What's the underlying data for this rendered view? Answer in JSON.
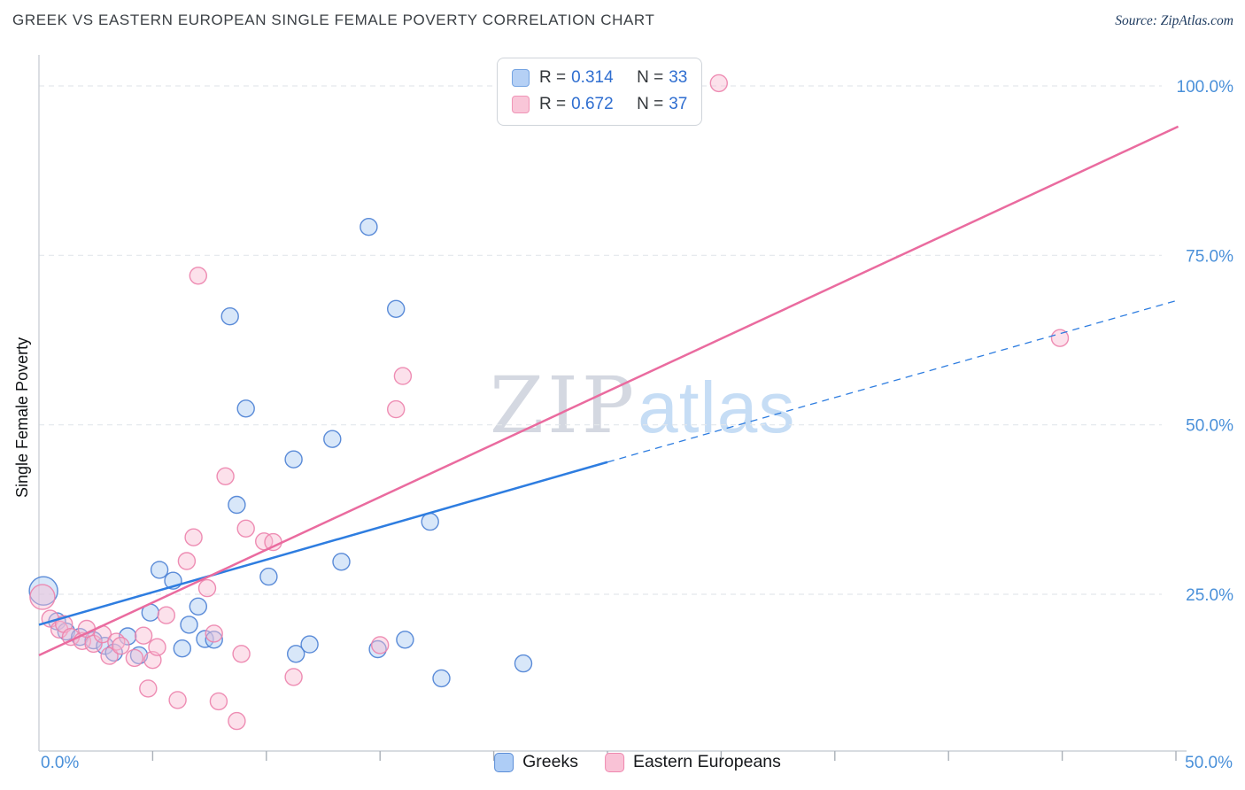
{
  "header": {
    "title": "GREEK VS EASTERN EUROPEAN SINGLE FEMALE POVERTY CORRELATION CHART",
    "source": "Source: ZipAtlas.com"
  },
  "watermark": {
    "zip": "ZIP",
    "atlas": "atlas"
  },
  "legend_box": {
    "rows": [
      {
        "series": "Greeks",
        "r_label": "R =",
        "r_value": "0.314",
        "n_label": "N =",
        "n_value": "33"
      },
      {
        "series": "Eastern Europeans",
        "r_label": "R =",
        "r_value": "0.672",
        "n_label": "N =",
        "n_value": "37"
      }
    ]
  },
  "bottom_legend": [
    {
      "label": "Greeks"
    },
    {
      "label": "Eastern Europeans"
    }
  ],
  "chart_data": {
    "type": "scatter",
    "title": "GREEK VS EASTERN EUROPEAN SINGLE FEMALE POVERTY CORRELATION CHART",
    "xlabel": "",
    "ylabel": "Single Female Poverty",
    "xlim": [
      0,
      50
    ],
    "ylim": [
      0,
      100
    ],
    "units": "percent",
    "grid": "horizontal dashed gridlines at 25, 50, 75, 100",
    "legend_position": "top-center (R/N box) and bottom-center (series names)",
    "axis_label_color": "#4a90d9",
    "x_axis": {
      "min": 0,
      "max": 50,
      "tick_step": 5,
      "left_label": "0.0%",
      "right_label": "50.0%"
    },
    "y_axis": {
      "min": 0,
      "max": 100,
      "side": "right",
      "gridlines": [
        {
          "value": 100,
          "label": "100.0%"
        },
        {
          "value": 75,
          "label": "75.0%"
        },
        {
          "value": 50,
          "label": "50.0%"
        },
        {
          "value": 25,
          "label": "25.0%"
        }
      ]
    },
    "series": [
      {
        "id": "greeks",
        "name": "Greeks",
        "R": 0.314,
        "N": 33,
        "fill": "#a9c9f2",
        "stroke": "#4a7fd4",
        "points": [
          [
            0.2,
            25.5,
            16
          ],
          [
            0.8,
            21.0
          ],
          [
            1.2,
            19.5
          ],
          [
            1.8,
            18.7
          ],
          [
            2.4,
            18.2
          ],
          [
            2.9,
            17.4
          ],
          [
            3.3,
            16.4
          ],
          [
            3.9,
            18.8
          ],
          [
            4.4,
            16.0
          ],
          [
            4.9,
            22.3
          ],
          [
            5.3,
            28.6
          ],
          [
            5.9,
            27.0
          ],
          [
            6.3,
            17.0
          ],
          [
            6.6,
            20.5
          ],
          [
            7.0,
            23.2
          ],
          [
            7.3,
            18.4
          ],
          [
            7.7,
            18.3
          ],
          [
            8.4,
            66.0
          ],
          [
            8.7,
            38.2
          ],
          [
            9.1,
            52.4
          ],
          [
            10.1,
            27.6
          ],
          [
            11.2,
            44.9
          ],
          [
            11.3,
            16.2
          ],
          [
            11.9,
            17.6
          ],
          [
            12.9,
            47.9
          ],
          [
            13.3,
            29.8
          ],
          [
            14.5,
            79.2
          ],
          [
            14.9,
            16.9
          ],
          [
            15.7,
            67.1
          ],
          [
            16.1,
            18.3
          ],
          [
            17.2,
            35.7
          ],
          [
            17.7,
            12.6
          ],
          [
            21.3,
            14.8
          ]
        ]
      },
      {
        "id": "eastern-europeans",
        "name": "Eastern Europeans",
        "R": 0.672,
        "N": 37,
        "fill": "#f8bcd2",
        "stroke": "#ec82ac",
        "points": [
          [
            0.15,
            24.6,
            14
          ],
          [
            0.5,
            21.4
          ],
          [
            0.9,
            19.8
          ],
          [
            1.1,
            20.6
          ],
          [
            1.4,
            18.7
          ],
          [
            1.9,
            18.1
          ],
          [
            2.1,
            19.9
          ],
          [
            2.4,
            17.7
          ],
          [
            2.8,
            19.1
          ],
          [
            3.1,
            15.9
          ],
          [
            3.4,
            18.0
          ],
          [
            3.6,
            17.4
          ],
          [
            4.2,
            15.6
          ],
          [
            4.6,
            18.9
          ],
          [
            4.8,
            11.1
          ],
          [
            5.0,
            15.3
          ],
          [
            5.2,
            17.2
          ],
          [
            5.6,
            21.9
          ],
          [
            6.1,
            9.4
          ],
          [
            6.5,
            29.9
          ],
          [
            6.8,
            33.4
          ],
          [
            7.0,
            72.0
          ],
          [
            7.4,
            25.9
          ],
          [
            7.7,
            19.2
          ],
          [
            7.9,
            9.2
          ],
          [
            8.2,
            42.4
          ],
          [
            8.7,
            6.3
          ],
          [
            8.9,
            16.2
          ],
          [
            9.1,
            34.7
          ],
          [
            9.9,
            32.8
          ],
          [
            10.3,
            32.7
          ],
          [
            11.2,
            12.8
          ],
          [
            15.0,
            17.5
          ],
          [
            15.7,
            52.3
          ],
          [
            16.0,
            57.2
          ],
          [
            29.9,
            100.4
          ],
          [
            44.9,
            62.8
          ]
        ]
      }
    ],
    "trend_lines": [
      {
        "id": "greeks",
        "series": "Greeks",
        "color": "#2e7de0",
        "solid": [
          [
            0,
            20.5
          ],
          [
            25,
            44.5
          ]
        ],
        "dashed": [
          [
            25,
            44.5
          ],
          [
            50.1,
            68.4
          ]
        ]
      },
      {
        "id": "eastern-europeans",
        "series": "Eastern Europeans",
        "color": "#ea6b9f",
        "solid": [
          [
            0,
            16.0
          ],
          [
            50.1,
            94.0
          ]
        ]
      }
    ]
  }
}
